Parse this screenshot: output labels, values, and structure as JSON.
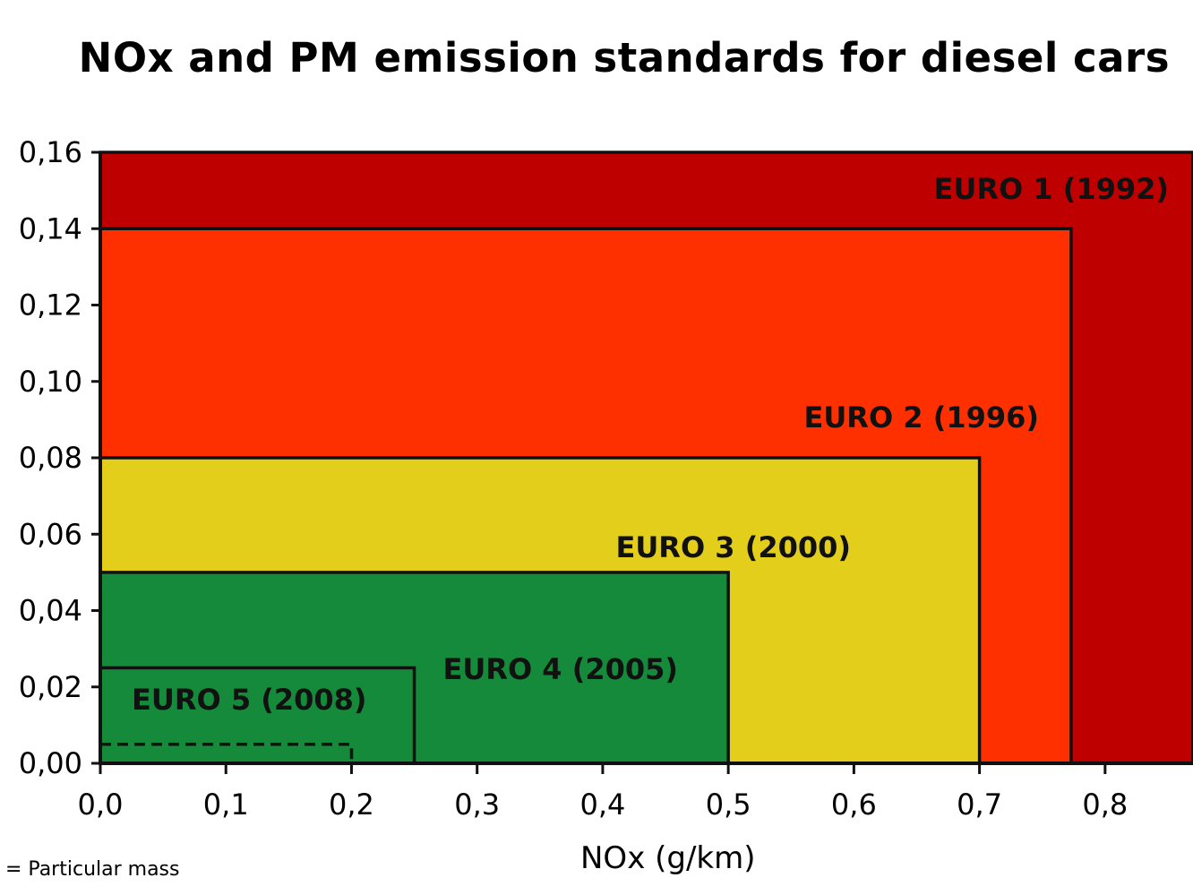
{
  "chart_data": {
    "type": "area",
    "title": "NOx and PM emission standards for diesel cars",
    "xlabel": "NOx (g/km)",
    "ylabel": "",
    "xlim": [
      0,
      0.87
    ],
    "ylim": [
      0,
      0.16
    ],
    "x_ticks": [
      0,
      0.1,
      0.2,
      0.3,
      0.4,
      0.5,
      0.6,
      0.7,
      0.8
    ],
    "x_tick_labels": [
      "0,0",
      "0,1",
      "0,2",
      "0,3",
      "0,4",
      "0,5",
      "0,6",
      "0,7",
      "0,8"
    ],
    "y_ticks": [
      0,
      0.02,
      0.04,
      0.06,
      0.08,
      0.1,
      0.12,
      0.14,
      0.16
    ],
    "y_tick_labels": [
      "0,00",
      "0,02",
      "0,04",
      "0,06",
      "0,08",
      "0,10",
      "0,12",
      "0,14",
      "0,16"
    ],
    "series": [
      {
        "name": "EURO 1 (1992)",
        "nox": 0.87,
        "pm": 0.16,
        "color": "#BF0000"
      },
      {
        "name": "EURO 2 (1996)",
        "nox": 0.773,
        "pm": 0.14,
        "color": "#FF3000"
      },
      {
        "name": "EURO 3 (2000)",
        "nox": 0.7,
        "pm": 0.08,
        "color": "#E4CE1C"
      },
      {
        "name": "EURO 4 (2005)",
        "nox": 0.5,
        "pm": 0.05,
        "color": "#148A3A"
      },
      {
        "name": "EURO 5 (2008)",
        "nox": 0.25,
        "pm": 0.025,
        "color": "#148A3A"
      }
    ],
    "dashed_limit": {
      "nox": 0.2,
      "pm": 0.005
    },
    "footnote": "= Particular mass"
  }
}
